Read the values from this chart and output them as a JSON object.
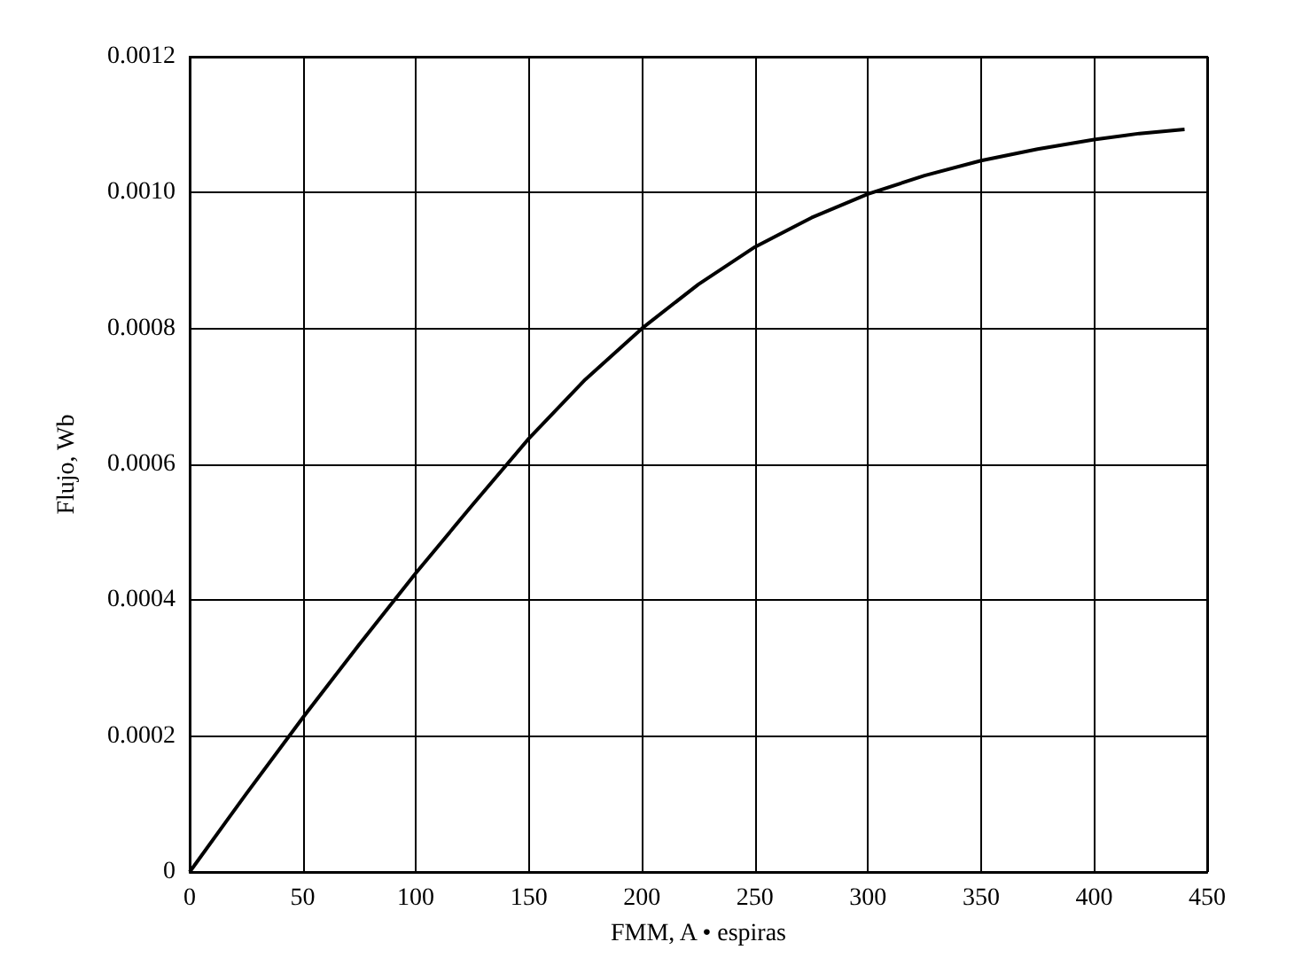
{
  "chart_data": {
    "type": "line",
    "xlabel": "FMM, A • espiras",
    "ylabel": "Flujo, Wb",
    "x": [
      0,
      25,
      50,
      75,
      100,
      125,
      150,
      175,
      200,
      225,
      250,
      275,
      300,
      325,
      350,
      375,
      400,
      420,
      440
    ],
    "values": [
      0,
      0.000115,
      0.000227,
      0.000335,
      0.00044,
      0.00054,
      0.000638,
      0.000725,
      0.0008,
      0.000865,
      0.00092,
      0.000963,
      0.000998,
      0.001025,
      0.001047,
      0.001064,
      0.001078,
      0.001087,
      0.001093
    ],
    "color": "#000000",
    "marker": "none",
    "line_style": "solid",
    "xlim": [
      0,
      450
    ],
    "xticks": [
      0,
      50,
      100,
      150,
      200,
      250,
      300,
      350,
      400,
      450
    ],
    "ylim": [
      0,
      0.0012
    ],
    "yticks": [
      {
        "value": 0,
        "label": "0"
      },
      {
        "value": 0.0002,
        "label": "0.0002"
      },
      {
        "value": 0.0004,
        "label": "0.0004"
      },
      {
        "value": 0.0006,
        "label": "0.0006"
      },
      {
        "value": 0.0008,
        "label": "0.0008"
      },
      {
        "value": 0.001,
        "label": "0.0010"
      },
      {
        "value": 0.0012,
        "label": "0.0012"
      }
    ],
    "grid": true
  }
}
